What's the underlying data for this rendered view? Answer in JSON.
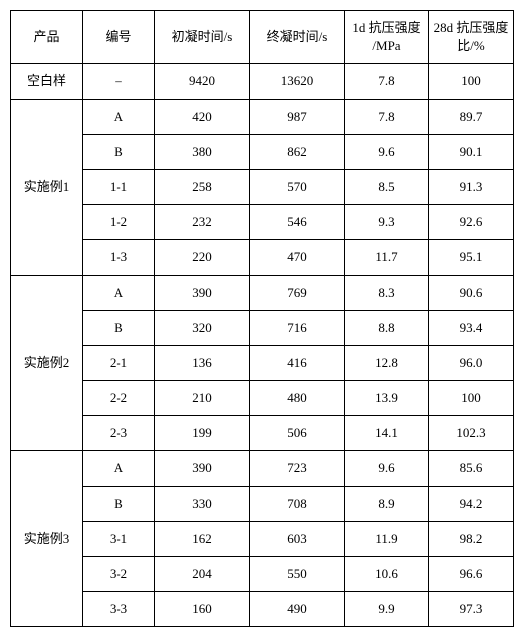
{
  "table": {
    "columns": {
      "product": "产品",
      "code": "编号",
      "initial_set": "初凝时间/s",
      "final_set": "终凝时间/s",
      "strength_1d_line1": "1d 抗压强度",
      "strength_1d_line2": "/MPa",
      "strength_28d_line1": "28d 抗压强度",
      "strength_28d_line2": "比/%"
    },
    "blank": {
      "product": "空白样",
      "code": "–",
      "init": "9420",
      "final": "13620",
      "s1d": "7.8",
      "s28d": "100"
    },
    "groups": [
      {
        "product": "实施例1",
        "rows": [
          {
            "code": "A",
            "init": "420",
            "final": "987",
            "s1d": "7.8",
            "s28d": "89.7"
          },
          {
            "code": "B",
            "init": "380",
            "final": "862",
            "s1d": "9.6",
            "s28d": "90.1"
          },
          {
            "code": "1-1",
            "init": "258",
            "final": "570",
            "s1d": "8.5",
            "s28d": "91.3"
          },
          {
            "code": "1-2",
            "init": "232",
            "final": "546",
            "s1d": "9.3",
            "s28d": "92.6"
          },
          {
            "code": "1-3",
            "init": "220",
            "final": "470",
            "s1d": "11.7",
            "s28d": "95.1"
          }
        ]
      },
      {
        "product": "实施例2",
        "rows": [
          {
            "code": "A",
            "init": "390",
            "final": "769",
            "s1d": "8.3",
            "s28d": "90.6"
          },
          {
            "code": "B",
            "init": "320",
            "final": "716",
            "s1d": "8.8",
            "s28d": "93.4"
          },
          {
            "code": "2-1",
            "init": "136",
            "final": "416",
            "s1d": "12.8",
            "s28d": "96.0"
          },
          {
            "code": "2-2",
            "init": "210",
            "final": "480",
            "s1d": "13.9",
            "s28d": "100"
          },
          {
            "code": "2-3",
            "init": "199",
            "final": "506",
            "s1d": "14.1",
            "s28d": "102.3"
          }
        ]
      },
      {
        "product": "实施例3",
        "rows": [
          {
            "code": "A",
            "init": "390",
            "final": "723",
            "s1d": "9.6",
            "s28d": "85.6"
          },
          {
            "code": "B",
            "init": "330",
            "final": "708",
            "s1d": "8.9",
            "s28d": "94.2"
          },
          {
            "code": "3-1",
            "init": "162",
            "final": "603",
            "s1d": "11.9",
            "s28d": "98.2"
          },
          {
            "code": "3-2",
            "init": "204",
            "final": "550",
            "s1d": "10.6",
            "s28d": "96.6"
          },
          {
            "code": "3-3",
            "init": "160",
            "final": "490",
            "s1d": "9.9",
            "s28d": "97.3"
          }
        ]
      }
    ]
  }
}
